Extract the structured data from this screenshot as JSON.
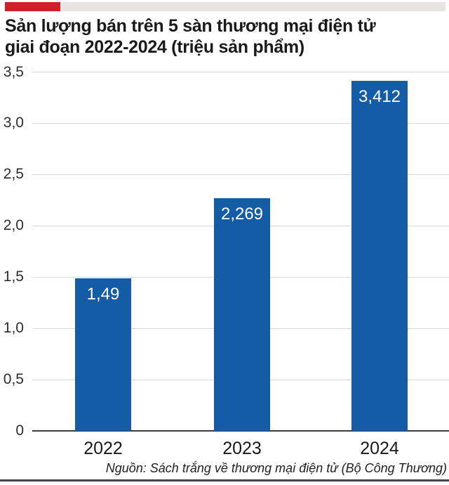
{
  "masthead": {
    "accent_color": "#d0202a",
    "strip_color": "#e8e4e1"
  },
  "title": {
    "line1": "Sản lượng bán trên 5 sàn thương mại điện tử",
    "line2": "giai đoạn 2022-2024 (triệu sản phẩm)"
  },
  "chart_data": {
    "type": "bar",
    "title": "Sản lượng bán trên 5 sàn thương mại điện tử giai đoạn 2022-2024 (triệu sản phẩm)",
    "categories": [
      "2022",
      "2023",
      "2024"
    ],
    "values": [
      1.49,
      2.269,
      3.412
    ],
    "value_labels": [
      "1,49",
      "2,269",
      "3,412"
    ],
    "xlabel": "",
    "ylabel": "",
    "ylim": [
      0,
      3.5
    ],
    "ytick_values": [
      0,
      0.5,
      1,
      1.5,
      2,
      2.5,
      3,
      3.5
    ],
    "ytick_labels": [
      "0",
      "0,5",
      "1,0",
      "1,5",
      "2,0",
      "2,5",
      "3,0",
      "3,5"
    ],
    "grid": true,
    "legend": "none",
    "bar_color": "#145ca6",
    "value_label_color": "#ffffff",
    "gridline_color": "#d8d8d8",
    "axis_color": "#3d3d3d"
  },
  "source": {
    "text": "Nguồn: Sách trắng về thương mại điện tử (Bộ Công Thương)"
  }
}
